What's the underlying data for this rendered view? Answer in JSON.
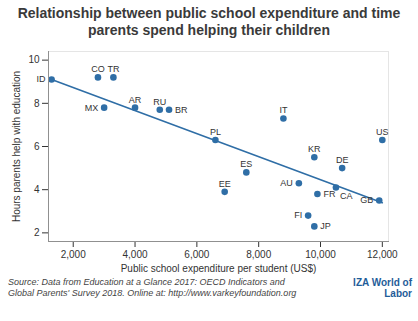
{
  "chart_data": {
    "type": "scatter",
    "title": "Relationship between public school expenditure and time parents spend helping their children",
    "x_label": "Public school expenditure per student (US$)",
    "y_label": "Hours parents help with education",
    "labels": [
      "ID",
      "CO",
      "TR",
      "MX",
      "AR",
      "RU",
      "BR",
      "PL",
      "IT",
      "KR",
      "US",
      "DE",
      "ES",
      "EE",
      "AU",
      "FR",
      "CA",
      "FI",
      "JP",
      "GB"
    ],
    "x": [
      1300,
      2800,
      3300,
      3000,
      4000,
      4800,
      5100,
      6600,
      8800,
      9800,
      12000,
      10700,
      7600,
      6900,
      9300,
      9900,
      10500,
      9600,
      9800,
      11900
    ],
    "values": [
      9.1,
      9.2,
      9.2,
      7.8,
      7.8,
      7.7,
      7.7,
      6.3,
      7.3,
      5.5,
      6.3,
      5.0,
      4.8,
      3.9,
      4.3,
      3.8,
      4.1,
      2.8,
      2.3,
      3.5
    ],
    "color": "#2f6ea6",
    "trend_line": {
      "type": "line",
      "x": [
        1300,
        12000
      ],
      "values": [
        9.1,
        3.4
      ],
      "color": "#2f6ea6"
    },
    "xlim": [
      1200,
      12200
    ],
    "xticks": [
      {
        "value": 2000,
        "label": "2,000"
      },
      {
        "value": 4000,
        "label": "4,000"
      },
      {
        "value": 6000,
        "label": "6,000"
      },
      {
        "value": 8000,
        "label": "8,000"
      },
      {
        "value": 10000,
        "label": "10,000"
      },
      {
        "value": 12000,
        "label": "12,000"
      }
    ],
    "ylim": [
      1.6,
      10.4
    ],
    "yticks": [
      2,
      4,
      6,
      8,
      10
    ],
    "grid": false,
    "source": "Source: Data from Education at a Glance 2017: OECD Indicators and Global Parents' Survey 2018. Online at: http://www.varkeyfoundation.org",
    "logo": "IZA World of Labor"
  }
}
